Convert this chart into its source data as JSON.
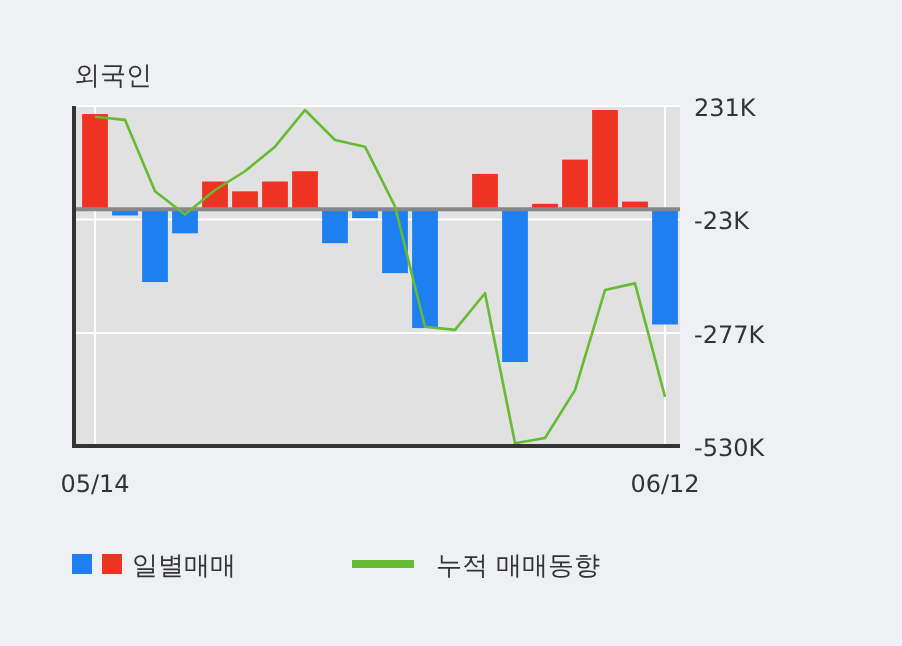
{
  "chart_data": {
    "type": "bar",
    "title": "외국인",
    "categories": [
      "05/14",
      null,
      null,
      null,
      null,
      null,
      null,
      null,
      null,
      null,
      null,
      null,
      null,
      null,
      null,
      null,
      null,
      null,
      null,
      "06/12"
    ],
    "series": [
      {
        "name": "일별매매",
        "values": [
          213,
          -14,
          -163,
          -54,
          62,
          40,
          62,
          85,
          -76,
          -20,
          -143,
          -266,
          0,
          79,
          -342,
          12,
          111,
          222,
          17,
          -258
        ],
        "colors": [
          "#ee3322",
          "#1e7ff0",
          "#1e7ff0",
          "#1e7ff0",
          "#ee3322",
          "#ee3322",
          "#ee3322",
          "#ee3322",
          "#1e7ff0",
          "#1e7ff0",
          "#1e7ff0",
          "#1e7ff0",
          "#ee3322",
          "#ee3322",
          "#1e7ff0",
          "#ee3322",
          "#ee3322",
          "#ee3322",
          "#ee3322",
          "#1e7ff0"
        ]
      },
      {
        "name": "누적 매매동향",
        "type": "line",
        "color": "#66bb33",
        "values": [
          207,
          200,
          40,
          -12,
          43,
          85,
          140,
          222,
          155,
          140,
          6,
          -263,
          -270,
          -188,
          -524,
          -512,
          -405,
          -181,
          -166,
          -420
        ]
      }
    ],
    "ylim": [
      -530,
      231
    ],
    "yticks": [
      {
        "value": 231,
        "label": "231K"
      },
      {
        "value": -23,
        "label": "-23K"
      },
      {
        "value": -277,
        "label": "-277K"
      },
      {
        "value": -530,
        "label": "-530K"
      }
    ],
    "grid": true,
    "legend": "bottom",
    "marker": "none",
    "line_style": "solid"
  }
}
